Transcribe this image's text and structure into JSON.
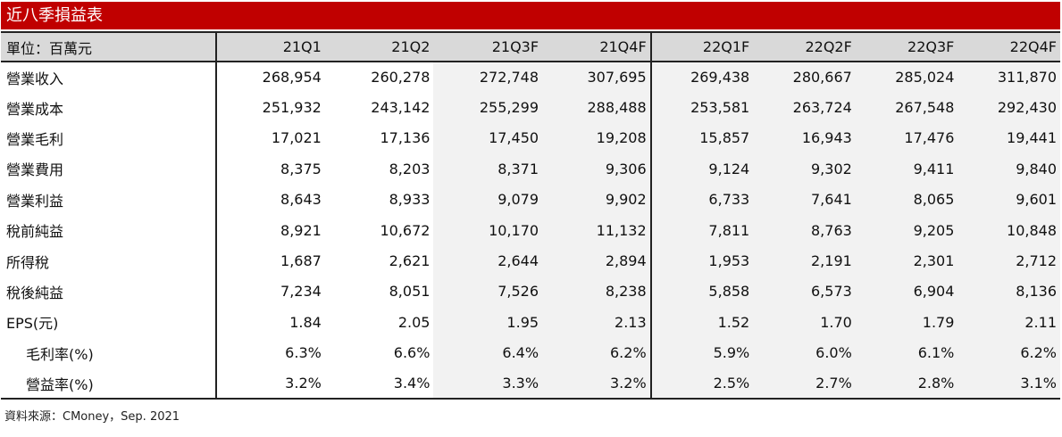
{
  "title": "近八季損益表",
  "header": {
    "unit_label": "單位：百萬元",
    "columns": [
      "21Q1",
      "21Q2",
      "21Q3F",
      "21Q4F",
      "22Q1F",
      "22Q2F",
      "22Q3F",
      "22Q4F"
    ]
  },
  "rows": [
    {
      "label": "營業收入",
      "values": [
        "268,954",
        "260,278",
        "272,748",
        "307,695",
        "269,438",
        "280,667",
        "285,024",
        "311,870"
      ]
    },
    {
      "label": "營業成本",
      "values": [
        "251,932",
        "243,142",
        "255,299",
        "288,488",
        "253,581",
        "263,724",
        "267,548",
        "292,430"
      ]
    },
    {
      "label": "營業毛利",
      "values": [
        "17,021",
        "17,136",
        "17,450",
        "19,208",
        "15,857",
        "16,943",
        "17,476",
        "19,441"
      ]
    },
    {
      "label": "營業費用",
      "values": [
        "8,375",
        "8,203",
        "8,371",
        "9,306",
        "9,124",
        "9,302",
        "9,411",
        "9,840"
      ]
    },
    {
      "label": "營業利益",
      "values": [
        "8,643",
        "8,933",
        "9,079",
        "9,902",
        "6,733",
        "7,641",
        "8,065",
        "9,601"
      ]
    },
    {
      "label": "稅前純益",
      "values": [
        "8,921",
        "10,672",
        "10,170",
        "11,132",
        "7,811",
        "8,763",
        "9,205",
        "10,848"
      ]
    },
    {
      "label": "所得稅",
      "values": [
        "1,687",
        "2,621",
        "2,644",
        "2,894",
        "1,953",
        "2,191",
        "2,301",
        "2,712"
      ]
    },
    {
      "label": "稅後純益",
      "values": [
        "7,234",
        "8,051",
        "7,526",
        "8,238",
        "5,858",
        "6,573",
        "6,904",
        "8,136"
      ]
    },
    {
      "label": "EPS(元)",
      "values": [
        "1.84",
        "2.05",
        "1.95",
        "2.13",
        "1.52",
        "1.70",
        "1.79",
        "2.11"
      ]
    },
    {
      "label": "毛利率(%)",
      "values": [
        "6.3%",
        "6.6%",
        "6.4%",
        "6.2%",
        "5.9%",
        "6.0%",
        "6.1%",
        "6.2%"
      ]
    },
    {
      "label": "營益率(%)",
      "values": [
        "3.2%",
        "3.4%",
        "3.3%",
        "3.2%",
        "2.5%",
        "2.7%",
        "2.8%",
        "3.1%"
      ]
    }
  ],
  "source": "資料來源：CMoney，Sep. 2021",
  "colors": {
    "title_bg": "#c00000",
    "header_bg": "#d9d9d9",
    "forecast_bg": "#f2f2f2"
  }
}
